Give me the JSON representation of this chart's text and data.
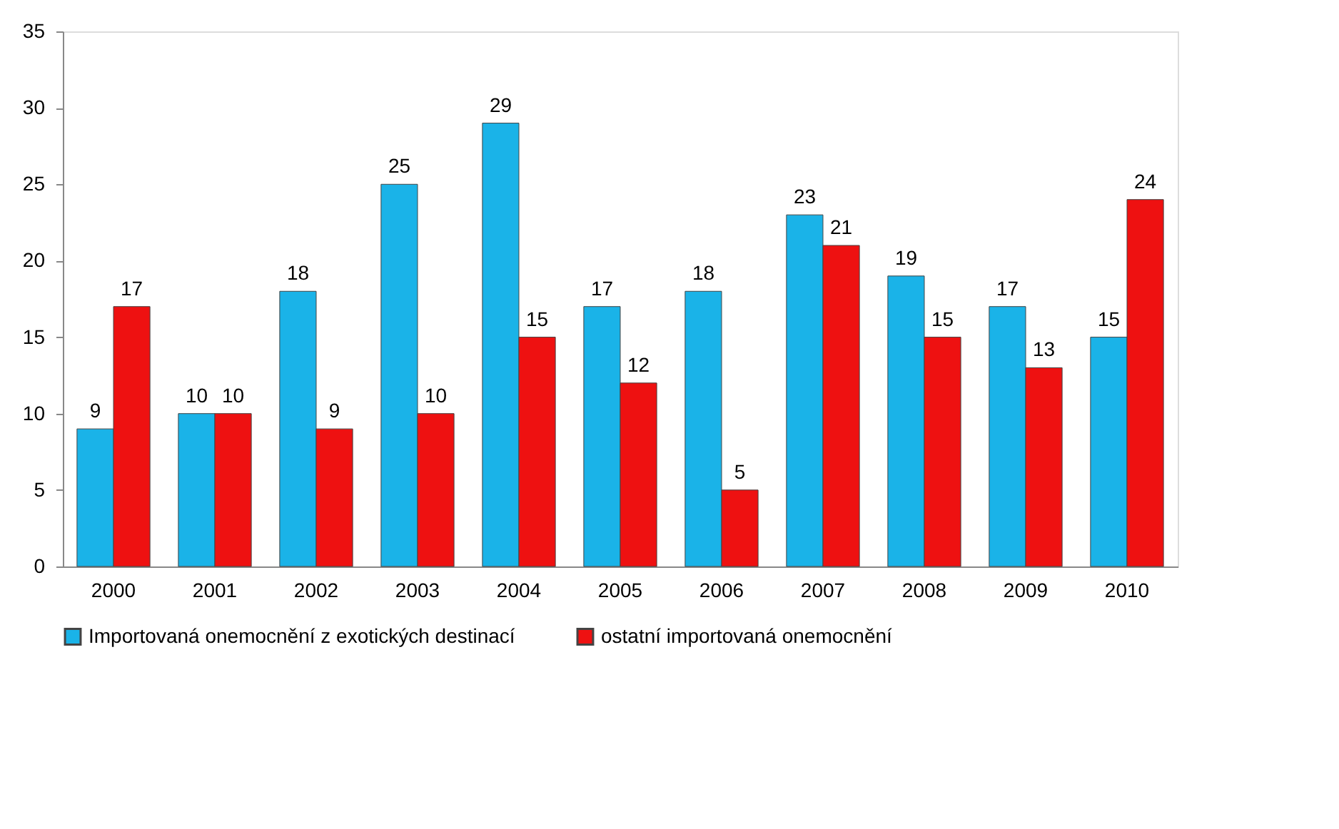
{
  "chart_data": {
    "type": "bar",
    "categories": [
      "2000",
      "2001",
      "2002",
      "2003",
      "2004",
      "2005",
      "2006",
      "2007",
      "2008",
      "2009",
      "2010"
    ],
    "series": [
      {
        "name": "Importovaná onemocnění z exotických destinací",
        "color": "#1ab3e8",
        "values": [
          9,
          10,
          18,
          25,
          29,
          17,
          18,
          23,
          19,
          17,
          15
        ]
      },
      {
        "name": "ostatní importovaná onemocnění",
        "color": "#ee1111",
        "values": [
          17,
          10,
          9,
          10,
          15,
          12,
          5,
          21,
          15,
          13,
          24
        ]
      }
    ],
    "ylim": [
      0,
      35
    ],
    "yticks": [
      0,
      5,
      10,
      15,
      20,
      25,
      30,
      35
    ],
    "grid": false,
    "legend": "bottom",
    "data_labels": true
  }
}
